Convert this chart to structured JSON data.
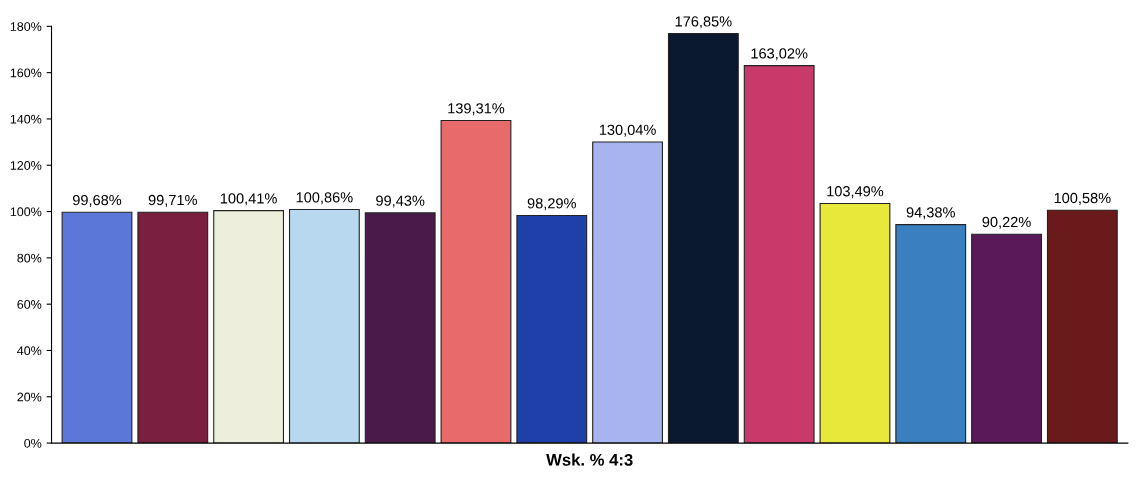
{
  "chart_data": {
    "type": "bar",
    "xlabel": "Wsk. % 4:3",
    "categories": [
      null,
      null,
      null,
      null,
      null,
      null,
      null,
      null,
      null,
      null,
      null,
      null,
      null,
      null
    ],
    "values": [
      99.68,
      99.71,
      100.41,
      100.86,
      99.43,
      139.31,
      98.29,
      130.04,
      176.85,
      163.02,
      103.49,
      94.38,
      90.22,
      100.58
    ],
    "colors": [
      "#5b78d8",
      "#7a1f3f",
      "#eeeedd",
      "#b8d8f0",
      "#4a1a4a",
      "#e86a6a",
      "#1f40a8",
      "#a8b4f0",
      "#0a1830",
      "#c83a6a",
      "#e8e83a",
      "#3a80c0",
      "#5a1a5a",
      "#6a1a1a"
    ],
    "value_labels": [
      "99,68%",
      "99,71%",
      "100,41%",
      "100,86%",
      "99,43%",
      "139,31%",
      "98,29%",
      "130,04%",
      "176,85%",
      "163,02%",
      "103,49%",
      "94,38%",
      "90,22%",
      "100,58%"
    ],
    "ylim": [
      0,
      180
    ],
    "yticks": [
      {
        "value": 0,
        "label": "0%"
      },
      {
        "value": 20,
        "label": "20%"
      },
      {
        "value": 40,
        "label": "40%"
      },
      {
        "value": 60,
        "label": "60%"
      },
      {
        "value": 80,
        "label": "80%"
      },
      {
        "value": 100,
        "label": "100%"
      },
      {
        "value": 120,
        "label": "120%"
      },
      {
        "value": 140,
        "label": "140%"
      },
      {
        "value": 160,
        "label": "160%"
      },
      {
        "value": 180,
        "label": "180%"
      }
    ],
    "grid": false,
    "legend": false
  }
}
